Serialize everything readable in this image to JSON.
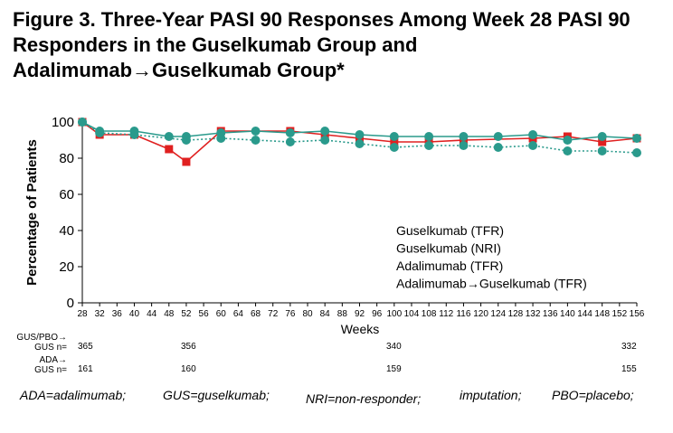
{
  "title": "Figure 3. Three-Year PASI 90 Responses Among Week 28 PASI 90 Responders in the Guselkumab Group and Adalimumab→Guselkumab Group*",
  "chart_data": {
    "type": "line",
    "ylabel": "Percentage of Patients",
    "xlabel": "Weeks",
    "ylim": [
      0,
      100
    ],
    "yticks": [
      "0",
      "20",
      "40",
      "60",
      "80",
      "100"
    ],
    "xticks": [
      28,
      32,
      36,
      40,
      44,
      48,
      52,
      56,
      60,
      64,
      68,
      72,
      76,
      80,
      84,
      88,
      92,
      96,
      100,
      104,
      108,
      112,
      116,
      120,
      124,
      128,
      132,
      136,
      140,
      144,
      148,
      152,
      156
    ],
    "legend_position": "bottom-right inside plot",
    "series": [
      {
        "name": "Guselkumab (TFR)",
        "color": "#2a9a8c",
        "marker": "circle",
        "line": "solid",
        "x": [
          28,
          32,
          40,
          48,
          52,
          60,
          68,
          76,
          84,
          92,
          100,
          108,
          116,
          124,
          132,
          140,
          148,
          156
        ],
        "values": [
          100,
          95,
          95,
          92,
          92,
          94,
          95,
          94,
          95,
          93,
          92,
          92,
          92,
          92,
          93,
          90,
          92,
          91
        ]
      },
      {
        "name": "Guselkumab (NRI)",
        "color": "#2a9a8c",
        "marker": "circle",
        "line": "dotted",
        "x": [
          28,
          32,
          40,
          52,
          60,
          68,
          76,
          84,
          92,
          100,
          108,
          116,
          124,
          132,
          140,
          148,
          156
        ],
        "values": [
          100,
          94,
          93,
          90,
          91,
          90,
          89,
          90,
          88,
          86,
          87,
          87,
          86,
          87,
          84,
          84,
          83
        ]
      },
      {
        "name": "Adalimumab (TFR)",
        "color": "#e02020",
        "marker": "square",
        "line": "solid",
        "x": [
          28,
          32,
          40,
          48,
          52,
          60,
          76,
          84,
          92,
          100,
          108,
          116,
          132,
          140,
          148,
          156
        ],
        "values": [
          100,
          93,
          93,
          85,
          78,
          95,
          95,
          93,
          91,
          89,
          89,
          90,
          91,
          92,
          89,
          91
        ]
      },
      {
        "name": "Adalimumab→Guselkumab (TFR)",
        "color": "#8a8a8a",
        "marker": "none",
        "line": "solid",
        "x": [],
        "values": []
      }
    ]
  },
  "n_table": {
    "row1": {
      "label_line1": "GUS/PBO→",
      "label_line2": "GUS n=",
      "values": [
        "365",
        "356",
        "340",
        "332"
      ],
      "weeks": [
        28,
        52,
        100,
        156
      ]
    },
    "row2": {
      "label_line1": "ADA→",
      "label_line2": "GUS n=",
      "values": [
        "161",
        "160",
        "159",
        "155"
      ],
      "weeks": [
        28,
        52,
        100,
        156
      ]
    }
  },
  "abbreviations": [
    "ADA=adalimumab;",
    "GUS=guselkumab;",
    "NRI=non-responder;",
    "imputation;",
    "PBO=placebo;"
  ]
}
